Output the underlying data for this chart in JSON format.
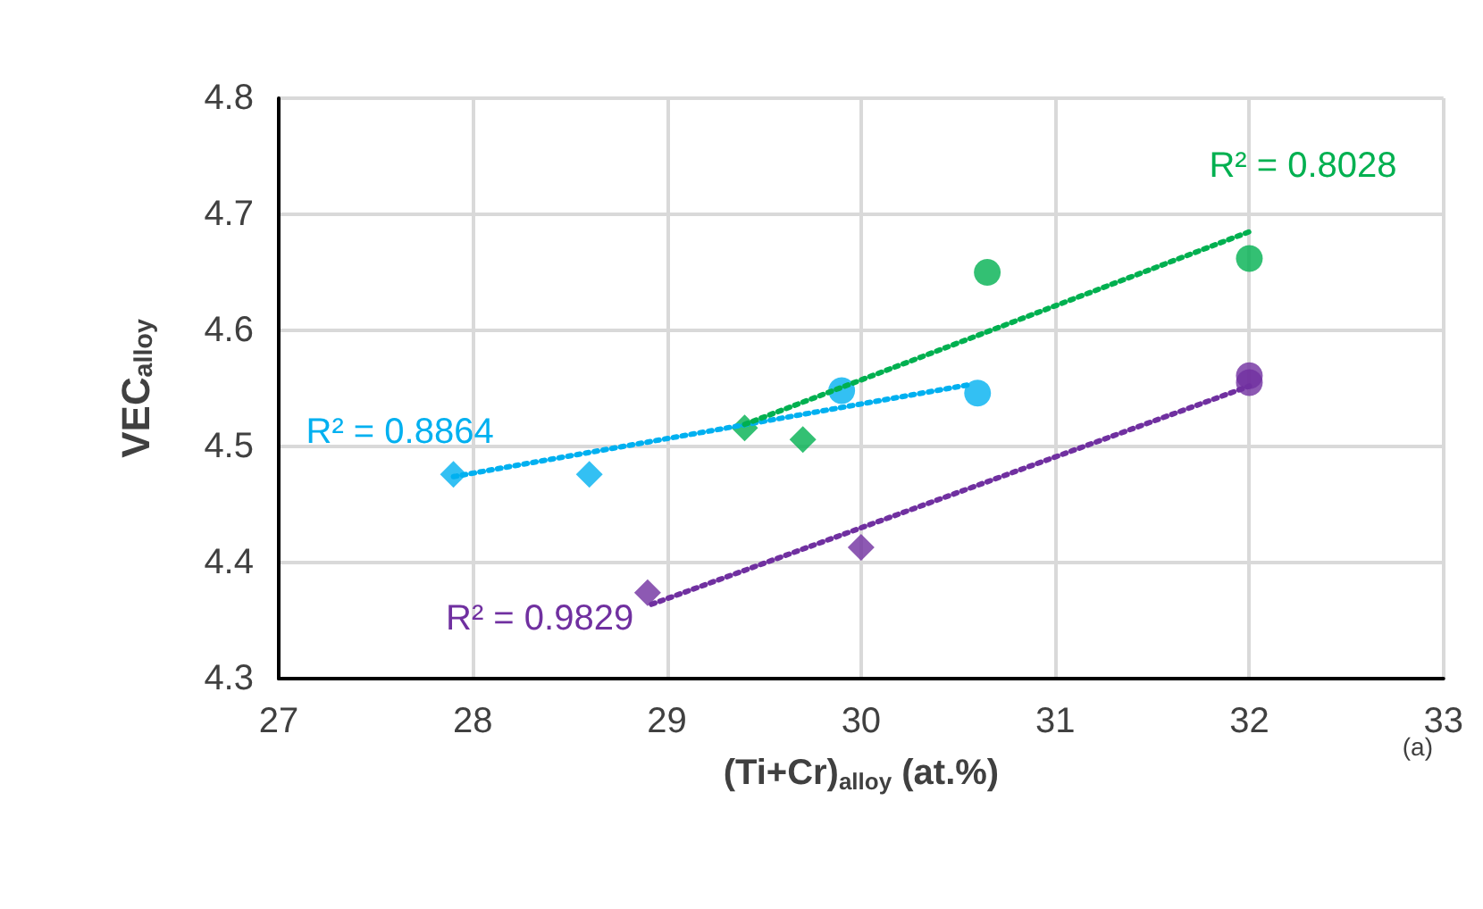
{
  "chart_data": {
    "type": "scatter",
    "xlabel": "(Ti+Cr)$_{alloy}$ (at.%)",
    "ylabel": "VEC$_{alloy}$",
    "xlim": [
      27,
      33
    ],
    "xticks": [
      27,
      28,
      29,
      30,
      31,
      32,
      33
    ],
    "ylim": [
      4.3,
      4.8
    ],
    "yticks": [
      4.3,
      4.4,
      4.5,
      4.6,
      4.7,
      4.8
    ],
    "grid": true,
    "series": [
      {
        "marker": "diamond",
        "color": "#00b0f0",
        "x": [
          27.9,
          28.6
        ],
        "values": [
          4.476,
          4.476
        ]
      },
      {
        "marker": "circle",
        "color": "#00b0f0",
        "x": [
          29.9,
          30.6
        ],
        "values": [
          4.548,
          4.546
        ]
      },
      {
        "marker": "diamond",
        "color": "#00b050",
        "x": [
          29.4,
          29.7
        ],
        "values": [
          4.516,
          4.506
        ]
      },
      {
        "marker": "circle",
        "color": "#00b050",
        "x": [
          30.65,
          32.0
        ],
        "values": [
          4.65,
          4.662
        ]
      },
      {
        "marker": "diamond",
        "color": "#7030a0",
        "x": [
          28.9,
          30.0
        ],
        "values": [
          4.374,
          4.413
        ]
      },
      {
        "marker": "circle",
        "color": "#7030a0",
        "x": [
          32.0,
          32.0
        ],
        "values": [
          4.561,
          4.555
        ]
      },
      {
        "type": "line",
        "name": "R² = 0.8864",
        "marker": "none",
        "line_style": "dotted",
        "color": "#00b0f0",
        "x": [
          27.9,
          30.55
        ],
        "values": [
          4.474,
          4.553
        ]
      },
      {
        "type": "line",
        "name": "R² = 0.8028",
        "marker": "none",
        "line_style": "dotted",
        "color": "#00b050",
        "x": [
          29.4,
          32.0
        ],
        "values": [
          4.519,
          4.685
        ]
      },
      {
        "type": "line",
        "name": "R² = 0.9829",
        "marker": "none",
        "line_style": "dotted",
        "color": "#7030a0",
        "x": [
          28.92,
          32.0
        ],
        "values": [
          4.364,
          4.552
        ]
      }
    ],
    "annotations": [
      "(a)"
    ]
  }
}
